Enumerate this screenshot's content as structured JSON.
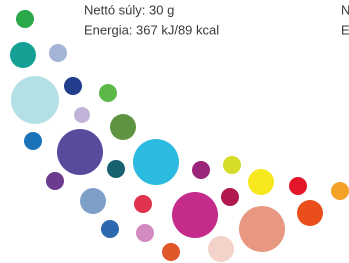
{
  "label": {
    "net_weight": "Nettó súly:  30 g",
    "energy": "Energia: 367 kJ/89 kcal",
    "cut_line_1": "N",
    "cut_line_2": "E"
  }
}
